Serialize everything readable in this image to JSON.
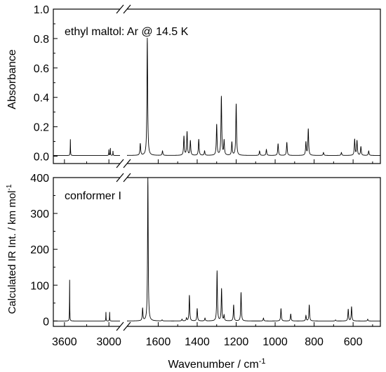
{
  "chart_data": [
    {
      "type": "line",
      "panel": "top",
      "annotation": "ethyl maltol: Ar @ 14.5 K",
      "ylabel": "Absorbance",
      "xlabel": "",
      "ylim": [
        -0.05,
        1.0
      ],
      "yticks": [
        0.0,
        0.2,
        0.4,
        0.6,
        0.8,
        1.0
      ],
      "ytick_labels": [
        "0.0",
        "0.2",
        "0.4",
        "0.6",
        "0.8",
        "1.0"
      ],
      "axis_break": "between 2950 and 1750 cm-1",
      "baseline": 0.005,
      "peaks": [
        {
          "x": 3520,
          "y": 0.11
        },
        {
          "x": 3000,
          "y": 0.04
        },
        {
          "x": 2980,
          "y": 0.05
        },
        {
          "x": 2945,
          "y": 0.03
        },
        {
          "x": 1692,
          "y": 0.08
        },
        {
          "x": 1656,
          "y": 0.8
        },
        {
          "x": 1578,
          "y": 0.03
        },
        {
          "x": 1468,
          "y": 0.13
        },
        {
          "x": 1452,
          "y": 0.16
        },
        {
          "x": 1435,
          "y": 0.1
        },
        {
          "x": 1392,
          "y": 0.11
        },
        {
          "x": 1362,
          "y": 0.03
        },
        {
          "x": 1300,
          "y": 0.21
        },
        {
          "x": 1276,
          "y": 0.4
        },
        {
          "x": 1262,
          "y": 0.1
        },
        {
          "x": 1222,
          "y": 0.09
        },
        {
          "x": 1200,
          "y": 0.35
        },
        {
          "x": 1080,
          "y": 0.03
        },
        {
          "x": 1045,
          "y": 0.04
        },
        {
          "x": 985,
          "y": 0.08
        },
        {
          "x": 940,
          "y": 0.09
        },
        {
          "x": 842,
          "y": 0.09
        },
        {
          "x": 830,
          "y": 0.18
        },
        {
          "x": 752,
          "y": 0.02
        },
        {
          "x": 660,
          "y": 0.02
        },
        {
          "x": 592,
          "y": 0.11
        },
        {
          "x": 580,
          "y": 0.1
        },
        {
          "x": 560,
          "y": 0.06
        },
        {
          "x": 520,
          "y": 0.03
        }
      ]
    },
    {
      "type": "line",
      "panel": "bottom",
      "annotation": "conformer I",
      "ylabel": "Calculated IR Int. / km mol-1",
      "ylabel_main": "Calculated IR Int. / km mol",
      "ylabel_sup": "-1",
      "xlabel": "Wavenumber / cm-1",
      "xlabel_main": "Wavenumber / cm",
      "xlabel_sup": "-1",
      "ylim": [
        -15,
        400
      ],
      "yticks": [
        0,
        100,
        200,
        300,
        400
      ],
      "ytick_labels": [
        "0",
        "100",
        "200",
        "300",
        "400"
      ],
      "xticks_left": [
        3600,
        3000
      ],
      "xticks_right": [
        1600,
        1400,
        1200,
        1000,
        800,
        600
      ],
      "xtick_labels_left": [
        "3600",
        "3000"
      ],
      "xtick_labels_right": [
        "1600",
        "1400",
        "1200",
        "1000",
        "800",
        "600"
      ],
      "axis_break": "between 2950 and 1750 cm-1",
      "peaks": [
        {
          "x": 3530,
          "y": 115
        },
        {
          "x": 3040,
          "y": 25
        },
        {
          "x": 2990,
          "y": 25
        },
        {
          "x": 1680,
          "y": 35
        },
        {
          "x": 1653,
          "y": 400
        },
        {
          "x": 1580,
          "y": 3
        },
        {
          "x": 1478,
          "y": 5
        },
        {
          "x": 1455,
          "y": 8
        },
        {
          "x": 1440,
          "y": 72
        },
        {
          "x": 1400,
          "y": 35
        },
        {
          "x": 1360,
          "y": 8
        },
        {
          "x": 1298,
          "y": 140
        },
        {
          "x": 1275,
          "y": 90
        },
        {
          "x": 1262,
          "y": 15
        },
        {
          "x": 1213,
          "y": 45
        },
        {
          "x": 1175,
          "y": 80
        },
        {
          "x": 1060,
          "y": 8
        },
        {
          "x": 970,
          "y": 35
        },
        {
          "x": 920,
          "y": 20
        },
        {
          "x": 842,
          "y": 15
        },
        {
          "x": 825,
          "y": 45
        },
        {
          "x": 690,
          "y": 3
        },
        {
          "x": 625,
          "y": 33
        },
        {
          "x": 608,
          "y": 40
        },
        {
          "x": 525,
          "y": 5
        }
      ]
    }
  ]
}
